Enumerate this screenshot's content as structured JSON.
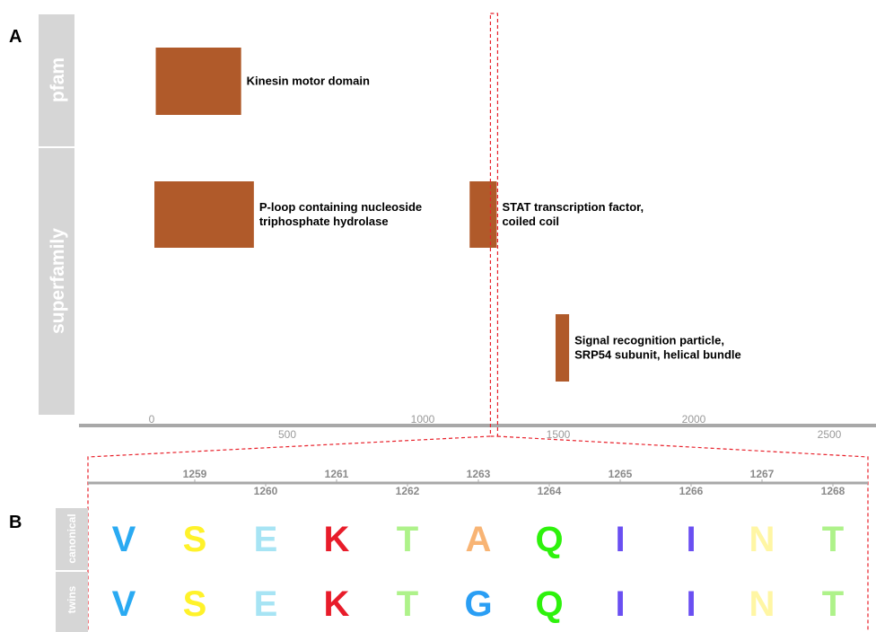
{
  "panels": {
    "a_label": "A",
    "b_label": "B"
  },
  "tracks": {
    "pfam": "pfam",
    "superfamily": "superfamily"
  },
  "domain_color": "#b05a2a",
  "domains": [
    {
      "track": "pfam",
      "start": 15,
      "end": 330,
      "lines": [
        "Kinesin motor domain"
      ]
    },
    {
      "track": "superfamily",
      "row": 1,
      "start": 10,
      "end": 377,
      "lines": [
        "P-loop containing nucleoside",
        "triphosphate hydrolase"
      ]
    },
    {
      "track": "superfamily",
      "row": 1,
      "start": 1173,
      "end": 1273,
      "lines": [
        "STAT transcription factor,",
        "coiled coil"
      ]
    },
    {
      "track": "superfamily",
      "row": 2,
      "start": 1490,
      "end": 1540,
      "lines": [
        "Signal recognition particle,",
        "SRP54 subunit, helical bundle"
      ]
    }
  ],
  "axis": {
    "upper_ticks": [
      "0",
      "1000",
      "2000"
    ],
    "lower_ticks": [
      "500",
      "1500",
      "2500"
    ],
    "highlight_position": 1263
  },
  "zoom": {
    "upper_positions": [
      "1259",
      "1261",
      "1263",
      "1265",
      "1267"
    ],
    "lower_positions": [
      "1260",
      "1262",
      "1264",
      "1266",
      "1268"
    ]
  },
  "alignment": {
    "row_labels": [
      "canonical",
      "twins"
    ],
    "canonical": [
      "V",
      "S",
      "E",
      "K",
      "T",
      "A",
      "Q",
      "I",
      "I",
      "N",
      "T"
    ],
    "twins": [
      "V",
      "S",
      "E",
      "K",
      "T",
      "G",
      "Q",
      "I",
      "I",
      "N",
      "T"
    ]
  },
  "residue_colors": {
    "V": "#2aaaf2",
    "S": "#fff22a",
    "E": "#a7e4f4",
    "K": "#e81c2a",
    "T": "#aef28a",
    "A": "#f8b474",
    "G": "#2a9ef4",
    "Q": "#2ef20c",
    "I": "#6a4ff2",
    "N": "#fff6a4"
  },
  "highlight_color": "#e8202a",
  "track_bg_color": "#d6d6d6",
  "axis_color": "#a8a8a8"
}
